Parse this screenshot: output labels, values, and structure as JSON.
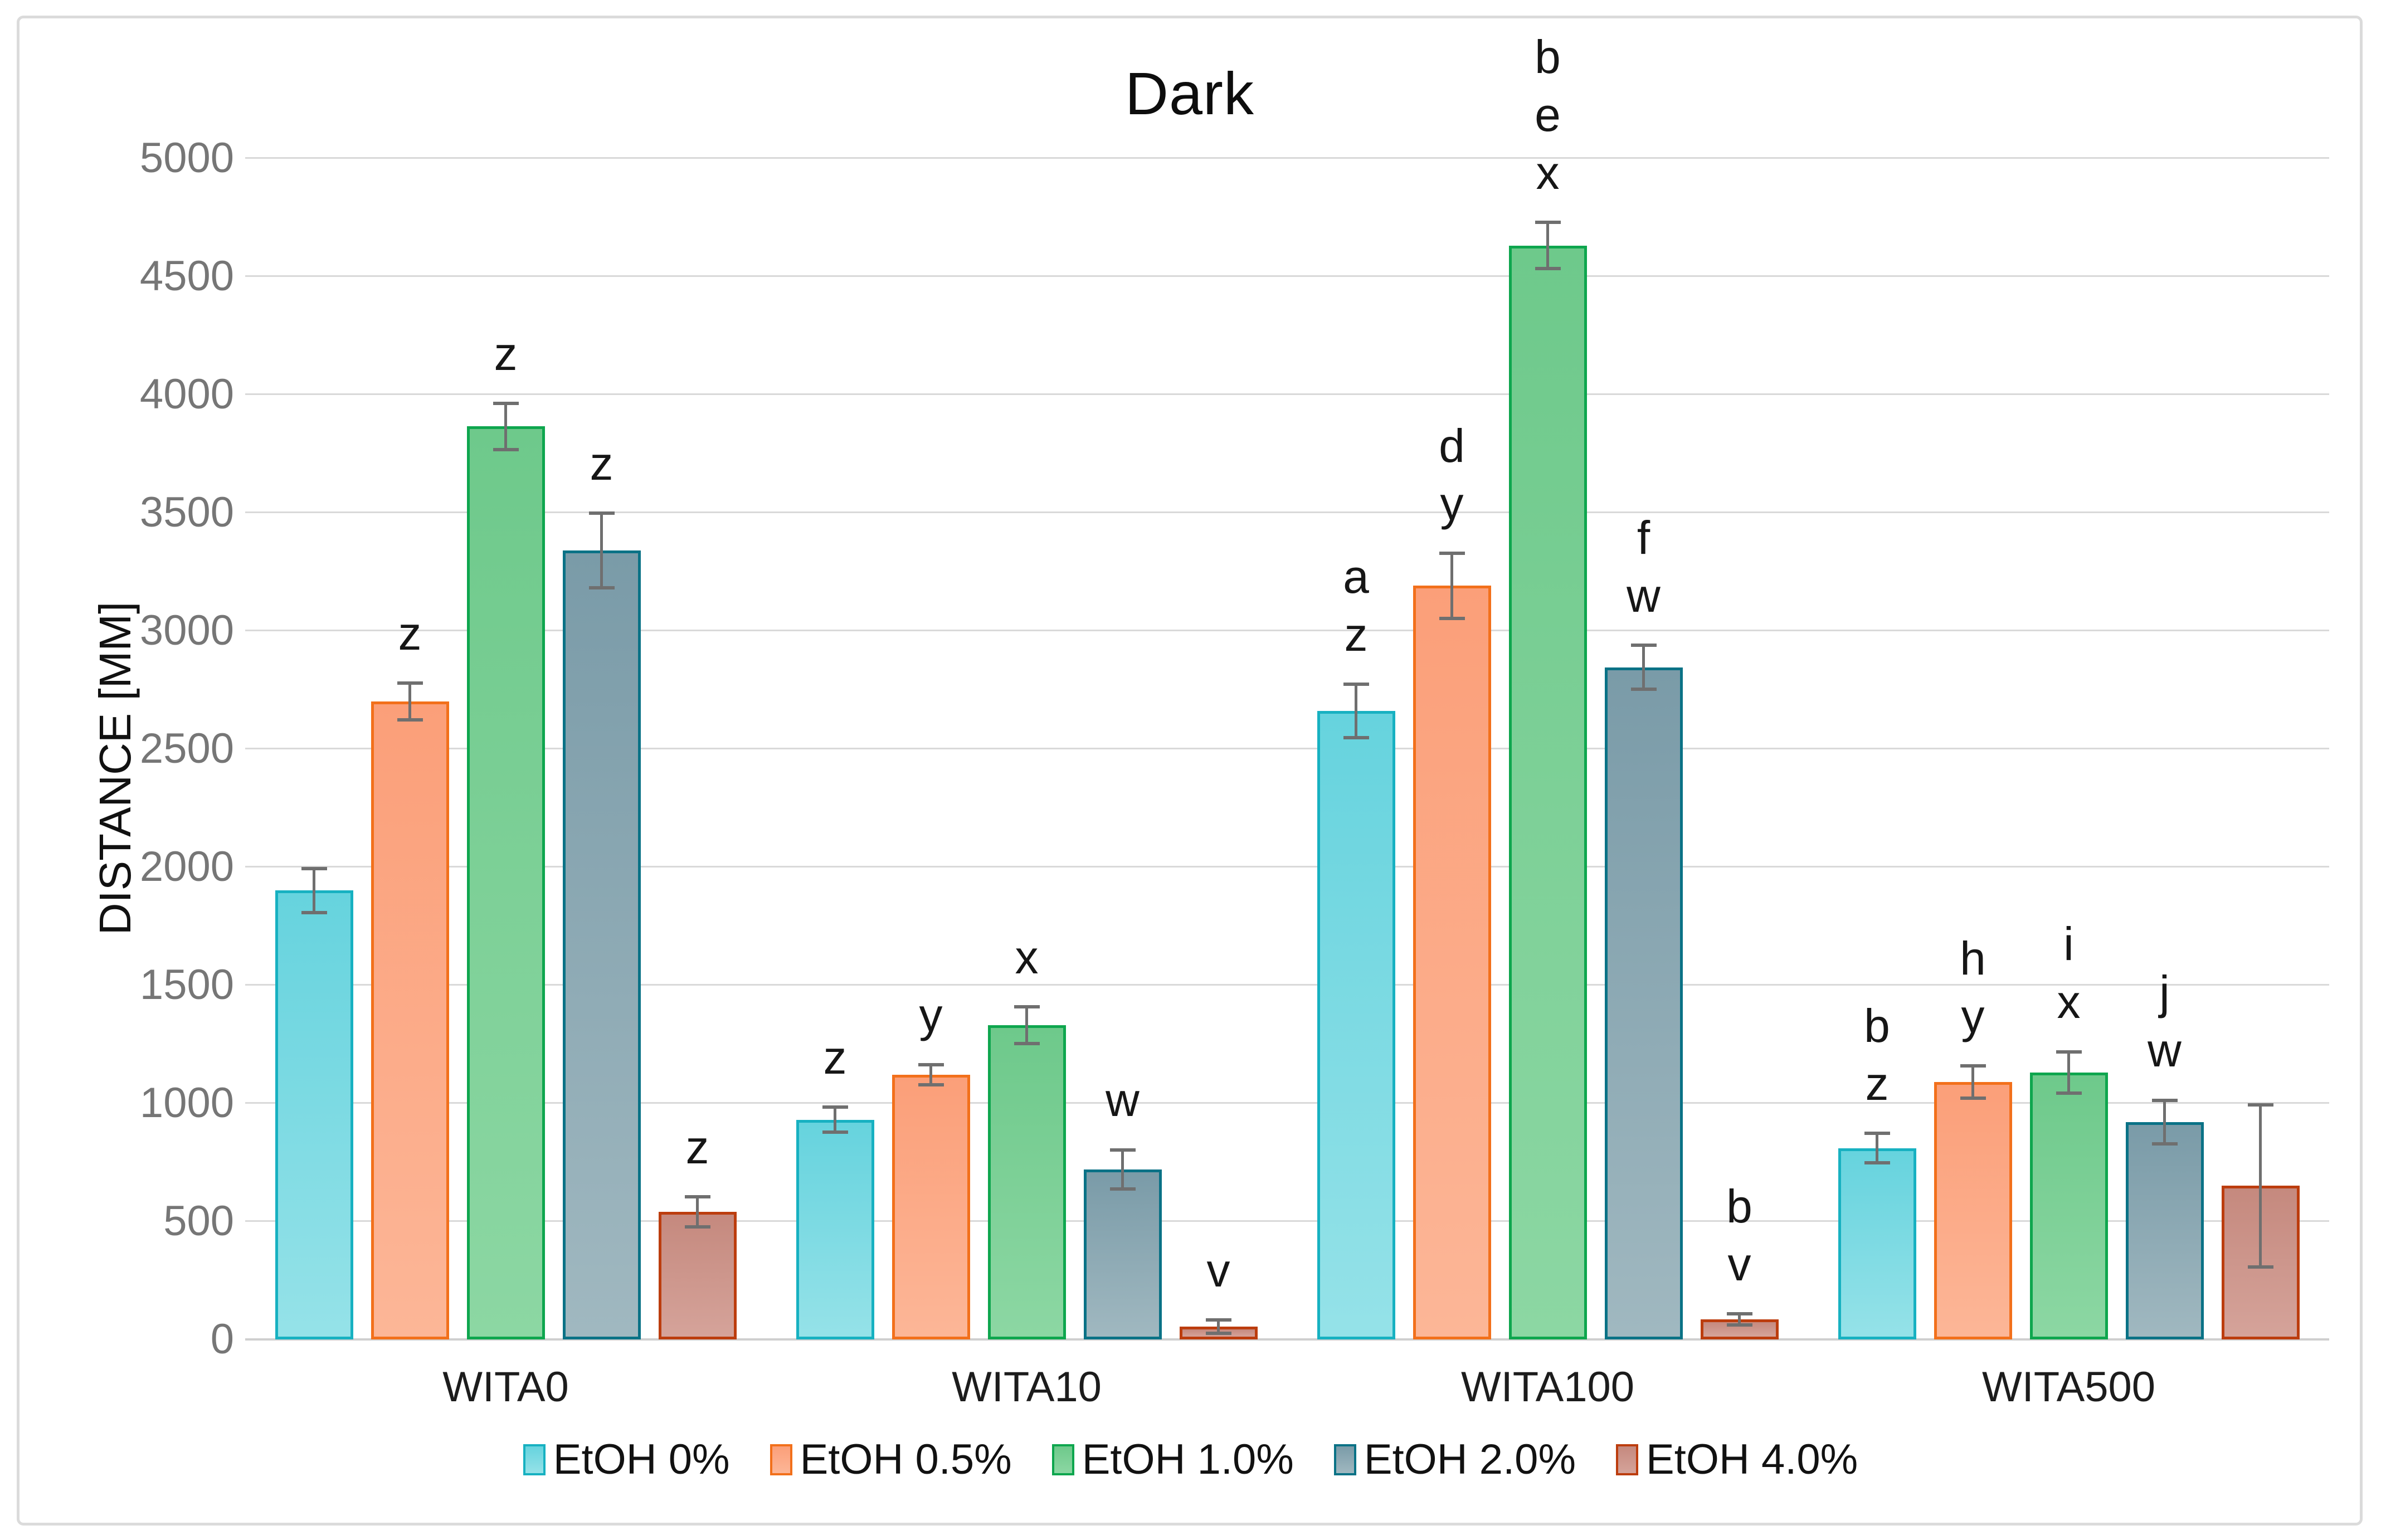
{
  "page": {
    "title": "Dark"
  },
  "chart_data": {
    "type": "bar",
    "title": "Dark",
    "ylabel": "DISTANCE [MM]",
    "xlabel": "",
    "ylim": [
      0,
      5000
    ],
    "ytick_step": 500,
    "grid": true,
    "legend_position": "bottom",
    "error_bars": true,
    "error_bar_color": "#6f6f6f",
    "gridline_color": "#d9d9d9",
    "categories": [
      "WITA0",
      "WITA10",
      "WITA100",
      "WITA500"
    ],
    "series": [
      {
        "name": "EtOH 0%",
        "border_color": "#17b1c1",
        "fill_top": "#66d3de",
        "fill_bottom": "#95e2e8",
        "values": [
          1900,
          930,
          2660,
          810
        ],
        "errors": [
          100,
          60,
          120,
          70
        ],
        "sig_labels": [
          [],
          [
            "z"
          ],
          [
            "a",
            "z"
          ],
          [
            "b",
            "z"
          ]
        ]
      },
      {
        "name": "EtOH 0.5%",
        "border_color": "#f2701b",
        "fill_top": "#fb9f79",
        "fill_bottom": "#fcb697",
        "values": [
          2700,
          1120,
          3190,
          1090
        ],
        "errors": [
          85,
          50,
          145,
          75
        ],
        "sig_labels": [
          [
            "z"
          ],
          [
            "y"
          ],
          [
            "d",
            "y"
          ],
          [
            "h",
            "y"
          ]
        ]
      },
      {
        "name": "EtOH 1.0%",
        "border_color": "#0ea64e",
        "fill_top": "#6ec98b",
        "fill_bottom": "#8cd7a3",
        "values": [
          3865,
          1330,
          4630,
          1130
        ],
        "errors": [
          105,
          85,
          105,
          95
        ],
        "sig_labels": [
          [
            "z"
          ],
          [
            "x"
          ],
          [
            "b",
            "e",
            "x"
          ],
          [
            "i",
            "x"
          ]
        ]
      },
      {
        "name": "EtOH 2.0%",
        "border_color": "#0a7286",
        "fill_top": "#7a9ba8",
        "fill_bottom": "#a0b8c0",
        "values": [
          3340,
          720,
          2845,
          920
        ],
        "errors": [
          165,
          90,
          100,
          100
        ],
        "sig_labels": [
          [
            "z"
          ],
          [
            "w"
          ],
          [
            "f",
            "w"
          ],
          [
            "j",
            "w"
          ]
        ]
      },
      {
        "name": "EtOH 4.0%",
        "border_color": "#bc3d0e",
        "fill_top": "#c5897e",
        "fill_bottom": "#d5a39a",
        "values": [
          540,
          55,
          85,
          650
        ],
        "errors": [
          70,
          35,
          30,
          350
        ],
        "sig_labels": [
          [
            "z"
          ],
          [
            "v"
          ],
          [
            "b",
            "v"
          ],
          []
        ]
      }
    ]
  }
}
